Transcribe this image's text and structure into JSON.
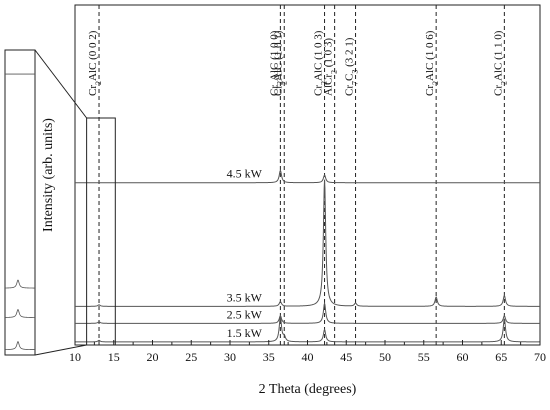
{
  "chart_data": {
    "type": "line",
    "xlabel": "2 Theta (degrees)",
    "ylabel": "Intensity (arb. units)",
    "xlim": [
      10,
      70
    ],
    "x_ticks": [
      "10",
      "15",
      "20",
      "25",
      "30",
      "35",
      "40",
      "45",
      "50",
      "55",
      "60",
      "65",
      "70"
    ],
    "grid": false,
    "reference_lines": [
      {
        "x": 13.1,
        "parts": [
          [
            "Cr",
            ""
          ],
          [
            "2",
            "sub"
          ],
          [
            "AlC (0 0 2)",
            ""
          ]
        ]
      },
      {
        "x": 36.5,
        "parts": [
          [
            "Cr",
            ""
          ],
          [
            "2",
            "sub"
          ],
          [
            "AlC (1 0 0)",
            ""
          ]
        ]
      },
      {
        "x": 37.0,
        "parts": [
          [
            "Cr",
            ""
          ],
          [
            "2",
            "sub"
          ],
          [
            "AlC (1 0 1)",
            ""
          ]
        ]
      },
      {
        "x": 42.2,
        "parts": [
          [
            "Cr",
            ""
          ],
          [
            "2",
            "sub"
          ],
          [
            "AlC (1 0 3)",
            ""
          ]
        ]
      },
      {
        "x": 43.5,
        "parts": [
          [
            "AlCr",
            ""
          ],
          [
            "2",
            "sub"
          ],
          [
            " (1 0 3)",
            ""
          ]
        ]
      },
      {
        "x": 46.2,
        "parts": [
          [
            "Cr",
            ""
          ],
          [
            "7",
            "sub"
          ],
          [
            "C",
            ""
          ],
          [
            "3",
            "sub"
          ],
          [
            " (3 2 1)",
            ""
          ]
        ]
      },
      {
        "x": 56.6,
        "parts": [
          [
            "Cr",
            ""
          ],
          [
            "2",
            "sub"
          ],
          [
            "AlC (1 0 6)",
            ""
          ]
        ]
      },
      {
        "x": 65.4,
        "parts": [
          [
            "Cr",
            ""
          ],
          [
            "2",
            "sub"
          ],
          [
            "AlC (1 1 0)",
            ""
          ]
        ]
      }
    ],
    "series": [
      {
        "name": "1.5 kW",
        "baseline": 1.0,
        "peaks": [
          [
            13.1,
            0.5
          ],
          [
            36.5,
            8.0
          ],
          [
            37.0,
            1.5
          ],
          [
            42.2,
            4.0
          ],
          [
            65.4,
            7.5
          ]
        ]
      },
      {
        "name": "2.5 kW",
        "baseline": 7.0,
        "peaks": [
          [
            13.1,
            0.5
          ],
          [
            36.5,
            2.5
          ],
          [
            42.2,
            6.5
          ],
          [
            65.4,
            2.5
          ]
        ]
      },
      {
        "name": "3.5 kW",
        "baseline": 12.5,
        "peaks": [
          [
            13.1,
            0.5
          ],
          [
            36.5,
            1.5
          ],
          [
            42.2,
            41.0
          ],
          [
            46.2,
            1.0
          ],
          [
            56.6,
            3.0
          ],
          [
            65.4,
            3.5
          ]
        ]
      },
      {
        "name": "4.5 kW",
        "baseline": 52.5,
        "peaks": [
          [
            36.5,
            4.0
          ],
          [
            42.2,
            2.5
          ]
        ]
      }
    ]
  }
}
